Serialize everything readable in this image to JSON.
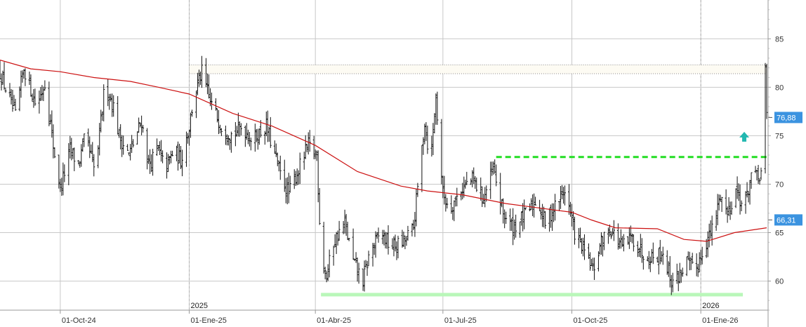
{
  "chart_data": {
    "type": "bar",
    "subtype": "ohlc-price-chart",
    "grid": true,
    "ylim": [
      57,
      89
    ],
    "y_ticks": [
      {
        "value": 85,
        "label": "85"
      },
      {
        "value": 80,
        "label": "80"
      },
      {
        "value": 75,
        "label": "75"
      },
      {
        "value": 70,
        "label": "70"
      },
      {
        "value": 65,
        "label": "65"
      },
      {
        "value": 60,
        "label": "60"
      }
    ],
    "x_range": [
      "2024-08-19",
      "2026-02-18"
    ],
    "x_ticks": [
      {
        "date": "2024-10-01",
        "label": "01-Oct-24"
      },
      {
        "date": "2025-01-01",
        "label": "01-Ene-25"
      },
      {
        "date": "2025-04-01",
        "label": "01-Abr-25"
      },
      {
        "date": "2025-07-01",
        "label": "01-Jul-25"
      },
      {
        "date": "2025-10-01",
        "label": "01-Oct-25"
      },
      {
        "date": "2026-01-01",
        "label": "01-Ene-26"
      }
    ],
    "year_markers": [
      {
        "date": "2025-01-01",
        "label": "2025"
      },
      {
        "date": "2026-01-01",
        "label": "2026"
      }
    ],
    "price_path": [
      [
        "2024-08-19",
        81.5
      ],
      [
        "2024-08-30",
        77.0
      ],
      [
        "2024-09-05",
        82.0
      ],
      [
        "2024-09-14",
        78.0
      ],
      [
        "2024-09-20",
        80.5
      ],
      [
        "2024-09-26",
        74.0
      ],
      [
        "2024-10-01",
        69.5
      ],
      [
        "2024-10-08",
        73.5
      ],
      [
        "2024-10-14",
        72.0
      ],
      [
        "2024-10-19",
        75.0
      ],
      [
        "2024-10-26",
        71.0
      ],
      [
        "2024-11-02",
        80.5
      ],
      [
        "2024-11-08",
        78.0
      ],
      [
        "2024-11-12",
        75.0
      ],
      [
        "2024-11-19",
        73.0
      ],
      [
        "2024-11-28",
        76.5
      ],
      [
        "2024-12-03",
        72.0
      ],
      [
        "2024-12-10",
        73.5
      ],
      [
        "2024-12-15",
        71.5
      ],
      [
        "2024-12-21",
        73.5
      ],
      [
        "2024-12-26",
        72.5
      ],
      [
        "2025-01-01",
        76.0
      ],
      [
        "2025-01-05",
        79.5
      ],
      [
        "2025-01-10",
        81.5
      ],
      [
        "2025-01-16",
        78.5
      ],
      [
        "2025-01-24",
        76.0
      ],
      [
        "2025-02-01",
        75.0
      ],
      [
        "2025-02-08",
        76.0
      ],
      [
        "2025-02-15",
        74.5
      ],
      [
        "2025-02-25",
        76.0
      ],
      [
        "2025-03-01",
        74.0
      ],
      [
        "2025-03-07",
        71.0
      ],
      [
        "2025-03-13",
        69.0
      ],
      [
        "2025-03-20",
        71.5
      ],
      [
        "2025-03-27",
        74.0
      ],
      [
        "2025-04-02",
        73.0
      ],
      [
        "2025-04-05",
        63.0
      ],
      [
        "2025-04-09",
        60.5
      ],
      [
        "2025-04-14",
        64.0
      ],
      [
        "2025-04-22",
        66.0
      ],
      [
        "2025-04-28",
        62.0
      ],
      [
        "2025-05-05",
        60.0
      ],
      [
        "2025-05-10",
        63.0
      ],
      [
        "2025-05-18",
        65.0
      ],
      [
        "2025-05-25",
        63.5
      ],
      [
        "2025-06-03",
        64.0
      ],
      [
        "2025-06-10",
        65.5
      ],
      [
        "2025-06-14",
        71.0
      ],
      [
        "2025-06-18",
        76.5
      ],
      [
        "2025-06-22",
        72.0
      ],
      [
        "2025-06-26",
        79.0
      ],
      [
        "2025-07-01",
        69.0
      ],
      [
        "2025-07-06",
        67.5
      ],
      [
        "2025-07-14",
        69.5
      ],
      [
        "2025-07-22",
        70.5
      ],
      [
        "2025-07-30",
        68.5
      ],
      [
        "2025-08-06",
        71.5
      ],
      [
        "2025-08-13",
        67.0
      ],
      [
        "2025-08-20",
        65.5
      ],
      [
        "2025-08-30",
        67.0
      ],
      [
        "2025-09-06",
        68.5
      ],
      [
        "2025-09-12",
        66.0
      ],
      [
        "2025-09-20",
        68.0
      ],
      [
        "2025-09-26",
        69.5
      ],
      [
        "2025-10-03",
        65.0
      ],
      [
        "2025-10-10",
        63.0
      ],
      [
        "2025-10-16",
        61.0
      ],
      [
        "2025-10-22",
        64.0
      ],
      [
        "2025-10-28",
        65.5
      ],
      [
        "2025-11-06",
        63.5
      ],
      [
        "2025-11-13",
        64.5
      ],
      [
        "2025-11-20",
        63.0
      ],
      [
        "2025-11-28",
        62.5
      ],
      [
        "2025-12-05",
        63.0
      ],
      [
        "2025-12-11",
        60.0
      ],
      [
        "2025-12-16",
        60.5
      ],
      [
        "2025-12-22",
        62.0
      ],
      [
        "2025-12-28",
        61.0
      ],
      [
        "2026-01-03",
        63.5
      ],
      [
        "2026-01-10",
        65.5
      ],
      [
        "2026-01-15",
        69.0
      ],
      [
        "2026-01-20",
        67.0
      ],
      [
        "2026-01-26",
        69.5
      ],
      [
        "2026-02-01",
        67.5
      ],
      [
        "2026-02-06",
        71.0
      ],
      [
        "2026-02-11",
        70.5
      ],
      [
        "2026-02-14",
        71.5
      ],
      [
        "2026-02-16",
        81.5
      ],
      [
        "2026-02-17",
        77.0
      ]
    ],
    "moving_average": [
      [
        "2024-08-19",
        82.8
      ],
      [
        "2024-09-10",
        81.9
      ],
      [
        "2024-10-01",
        81.6
      ],
      [
        "2024-10-25",
        81.0
      ],
      [
        "2024-11-20",
        80.6
      ],
      [
        "2024-12-10",
        80.0
      ],
      [
        "2025-01-01",
        79.3
      ],
      [
        "2025-02-01",
        77.3
      ],
      [
        "2025-03-01",
        76.0
      ],
      [
        "2025-04-01",
        74.0
      ],
      [
        "2025-05-01",
        71.3
      ],
      [
        "2025-06-01",
        69.8
      ],
      [
        "2025-06-20",
        69.3
      ],
      [
        "2025-07-15",
        68.9
      ],
      [
        "2025-08-15",
        68.0
      ],
      [
        "2025-09-15",
        67.4
      ],
      [
        "2025-10-01",
        67.1
      ],
      [
        "2025-10-15",
        66.3
      ],
      [
        "2025-11-01",
        65.5
      ],
      [
        "2025-12-01",
        65.4
      ],
      [
        "2025-12-20",
        64.3
      ],
      [
        "2026-01-05",
        64.1
      ],
      [
        "2026-01-25",
        65.0
      ],
      [
        "2026-02-17",
        65.5
      ]
    ],
    "levels": [
      {
        "name": "resistance-zone",
        "from": "2025-01-01",
        "to": "2026-02-17",
        "y1": 81.4,
        "y2": 82.3,
        "style": "dotted-box"
      },
      {
        "name": "resistance-line",
        "from": "2025-08-08",
        "to": "2026-02-17",
        "y": 72.8,
        "style": "dashed-green"
      },
      {
        "name": "support-zone",
        "from": "2025-04-05",
        "to": "2026-01-31",
        "y": 58.6,
        "style": "light-green-band"
      }
    ],
    "arrow": {
      "date": "2026-02-01",
      "y": 75.4,
      "direction": "up"
    },
    "last_price": {
      "value": 76.88,
      "label": "76,88"
    },
    "ma_last": {
      "value": 66.31,
      "label": "66,31"
    }
  },
  "colors": {
    "price": "#111111",
    "moving_average": "#cc1111",
    "grid": "#c8c8c8",
    "resistance_line": "#22dd22",
    "support_band": "#b9f7b9",
    "resistance_zone": "#8a8a8a",
    "arrow": "#22b8b0",
    "badge_price": "#3b93e0",
    "badge_ma": "#3b93e0"
  }
}
